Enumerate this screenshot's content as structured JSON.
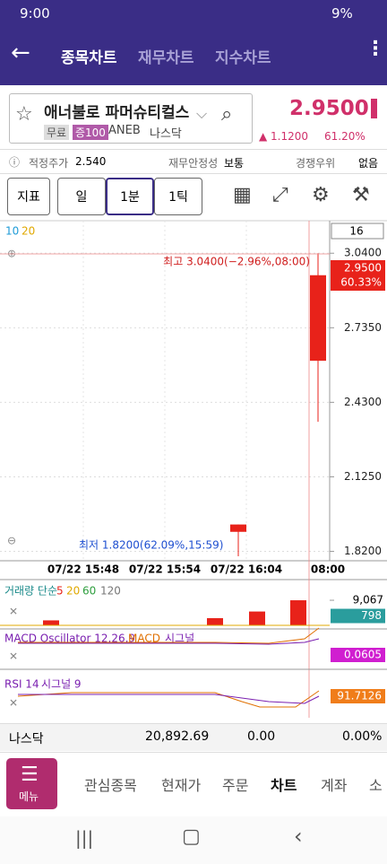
{
  "status_bar": {
    "time": "9:00",
    "battery": "9%"
  },
  "header": {
    "tabs": [
      "종목차트",
      "재무차트",
      "지수차트"
    ]
  },
  "stock": {
    "name": "애너불로 파머슈티컬스",
    "tags": [
      "무료",
      "증100"
    ],
    "ticker": "ANEB",
    "market": "나스닥",
    "price": "2.9500",
    "change": "▲ 1.1200",
    "change_pct": "61.20%"
  },
  "info": {
    "items": [
      {
        "label": "적정주가",
        "value": "2.540"
      },
      {
        "label": "재무안정성",
        "value": "보통"
      },
      {
        "label": "경쟁우위",
        "value": "없음"
      }
    ]
  },
  "toolbar": {
    "buttons": [
      "지표",
      "일",
      "1분",
      "1틱"
    ]
  },
  "price_chart": {
    "type": "candlestick",
    "legend": [
      {
        "name": "10",
        "color": "#1e9bd7"
      },
      {
        "name": "20",
        "color": "#e0a800"
      }
    ],
    "count": "16",
    "ylim": [
      1.8,
      3.14
    ],
    "yticks": [
      {
        "value": 3.04,
        "label": "3.0400"
      },
      {
        "value": 2.735,
        "label": "2.7350"
      },
      {
        "value": 2.43,
        "label": "2.4300"
      },
      {
        "value": 2.125,
        "label": "2.1250"
      },
      {
        "value": 1.82,
        "label": "1.8200"
      }
    ],
    "high_label": "최고 3.0400(−2.96%,08:00)",
    "low_label": "최저 1.8200(62.09%,15:59)",
    "current_price": "2.9500",
    "current_pct": "60.33%",
    "x_labels": [
      "07/22 15:48",
      "07/22 15:54",
      "07/22 16:04",
      "08:00"
    ],
    "candles": [
      {
        "open": 1.9,
        "high": 1.93,
        "low": 1.8,
        "close": 1.93
      },
      {
        "open": 2.6,
        "high": 3.04,
        "low": 2.35,
        "close": 2.95
      }
    ],
    "up_color": "#e8221a"
  },
  "volume": {
    "title": "거래량 단순",
    "ma_labels": [
      {
        "name": "5",
        "color": "#e8221a"
      },
      {
        "name": "20",
        "color": "#e0a800"
      },
      {
        "name": "60",
        "color": "#2e9e3e"
      },
      {
        "name": "120",
        "color": "#777777"
      }
    ],
    "ylim": [
      0,
      12000
    ],
    "yticks": [
      {
        "value": 9067,
        "label": "9,067"
      }
    ],
    "values": [
      1800,
      2600,
      5000,
      9067
    ],
    "current": 798,
    "color": "#e8221a"
  },
  "macd": {
    "title": "MACD Oscillator 12,26,9",
    "labels": [
      "MACD",
      "시그널"
    ],
    "current": "0.0605"
  },
  "rsi": {
    "title": "RSI 14",
    "signal": "시그널 9",
    "current": "91.7126"
  },
  "market_bar": {
    "name": "나스닥",
    "index": "20,892.69",
    "change": "0.00",
    "change_pct": "0.00%"
  },
  "nav": {
    "menu": "메뉴",
    "items": [
      "관심종목",
      "현재가",
      "주문",
      "차트",
      "계좌",
      "소"
    ]
  }
}
